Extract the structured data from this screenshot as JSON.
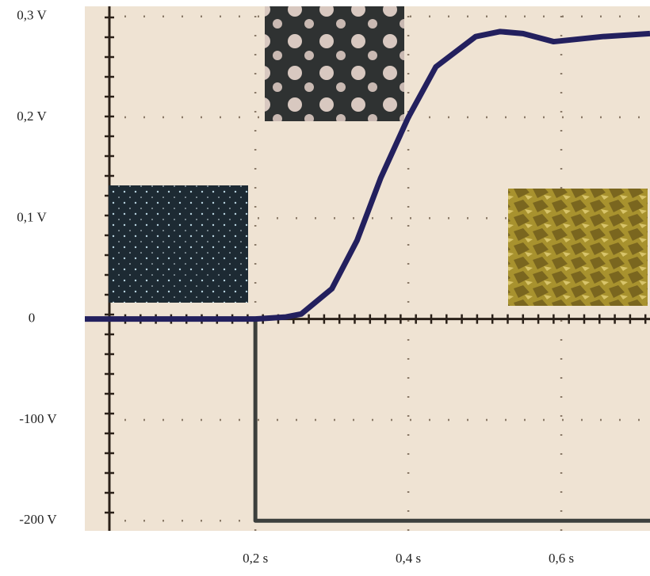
{
  "chart_data": {
    "type": "line",
    "x_series_note_free": null,
    "xlim": [
      -0.023,
      0.716
    ],
    "xticks": [
      {
        "value": 0.2,
        "label": "0,2 s"
      },
      {
        "value": 0.4,
        "label": "0,4 s"
      },
      {
        "value": 0.6,
        "label": "0,6 s"
      }
    ],
    "ylim": [
      -0.21,
      0.31
    ],
    "yticks": [
      0,
      {
        "value": 0.1,
        "label": "0,1 V"
      },
      {
        "value": 0.2,
        "label": "0,2 V"
      },
      {
        "value": 0.3,
        "label": "0,3 V"
      }
    ],
    "y2lim": [
      -210,
      310
    ],
    "y2ticks": [
      {
        "value": -200,
        "label": "-200 V"
      },
      {
        "value": -100,
        "label": "-100 V"
      }
    ],
    "grid": true,
    "series": [
      {
        "color": "#23205e",
        "x": [
          -0.023,
          0.2,
          0.24,
          0.26,
          0.3,
          0.333,
          0.364,
          0.4,
          0.436,
          0.488,
          0.52,
          0.55,
          0.59,
          0.654,
          0.716
        ],
        "values": [
          0,
          0,
          0.002,
          0.005,
          0.03,
          0.078,
          0.14,
          0.2,
          0.25,
          0.28,
          0.285,
          0.283,
          0.275,
          0.28,
          0.283
        ]
      },
      {
        "color": "#3c3f3c",
        "axis": "y2",
        "x": [
          -0.023,
          0.2,
          0.2,
          0.716
        ],
        "values": [
          0,
          0,
          -200,
          -200
        ]
      }
    ]
  }
}
